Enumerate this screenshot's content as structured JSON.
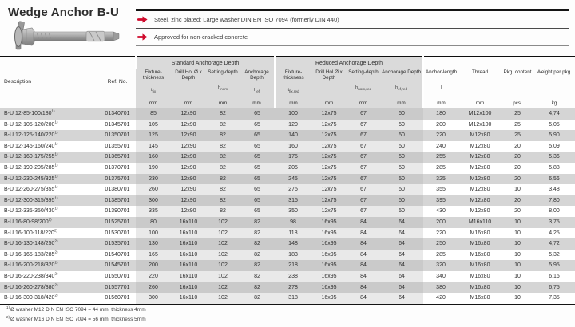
{
  "page": {
    "title": "Wedge Anchor B-U"
  },
  "colors": {
    "accent_red": "#cf0a2c",
    "header_gray": "#dadada",
    "row_shade_gray": "#d5d5d5",
    "group_tint": "#e9e9e9",
    "rule_black": "#141414"
  },
  "icons": {
    "bullet_arrow": "red-arrow-right",
    "product_image": "wedge-anchor-illustration"
  },
  "bullets": [
    {
      "text": "Steel, zinc plated; Large washer DIN EN ISO 7094 (formerly DIN 440)"
    },
    {
      "text": "Approved for non-cracked concrete"
    }
  ],
  "table": {
    "groups": {
      "standard": "Standard Anchorage Depth",
      "reduced": "Reduced Anchorage Depth"
    },
    "columns": [
      {
        "label": "Description"
      },
      {
        "label": "Ref. No."
      },
      {
        "label": "Fixture-thickness",
        "sym_base": "t",
        "sym_sub": "fix",
        "unit": "mm"
      },
      {
        "label": "Drill Hol Ø x Depth",
        "unit": "mm"
      },
      {
        "label": "Setting-depth",
        "sym_base": "h",
        "sym_sub": "nom",
        "unit": "mm"
      },
      {
        "label": "Anchorage Depth",
        "sym_base": "h",
        "sym_sub": "ef",
        "unit": "mm"
      },
      {
        "label": "Fixture-thickness",
        "sym_base": "t",
        "sym_sub": "fix,red",
        "unit": "mm"
      },
      {
        "label": "Drill Hol Ø x Depth",
        "unit": "mm"
      },
      {
        "label": "Setting-depth",
        "sym_base": "h",
        "sym_sub": "nom,red",
        "unit": "mm"
      },
      {
        "label": "Anchorage Depth",
        "sym_base": "h",
        "sym_sub": "ef,red",
        "unit": "mm"
      },
      {
        "label": "Anchor-length",
        "sym_base": "l",
        "unit": "mm"
      },
      {
        "label": "Thread",
        "unit": "mm"
      },
      {
        "label": "Pkg. content",
        "unit": "pcs."
      },
      {
        "label": "Weight per pkg.",
        "unit": "kg"
      }
    ],
    "rows": [
      {
        "desc": "B-U 12-85-100/180",
        "sup": "1)",
        "ref": "01340701",
        "std": [
          "85",
          "12x90",
          "82",
          "65"
        ],
        "red": [
          "100",
          "12x75",
          "67",
          "50"
        ],
        "len": "180",
        "thread": "M12x100",
        "pkg": "25",
        "weight": "4,74"
      },
      {
        "desc": "B-U 12-105-120/200",
        "sup": "1)",
        "ref": "01345701",
        "std": [
          "105",
          "12x90",
          "82",
          "65"
        ],
        "red": [
          "120",
          "12x75",
          "67",
          "50"
        ],
        "len": "200",
        "thread": "M12x100",
        "pkg": "25",
        "weight": "5,05"
      },
      {
        "desc": "B-U 12-125-140/220",
        "sup": "1)",
        "ref": "01350701",
        "std": [
          "125",
          "12x90",
          "82",
          "65"
        ],
        "red": [
          "140",
          "12x75",
          "67",
          "50"
        ],
        "len": "220",
        "thread": "M12x80",
        "pkg": "25",
        "weight": "5,90"
      },
      {
        "desc": "B-U 12-145-160/240",
        "sup": "1)",
        "ref": "01355701",
        "std": [
          "145",
          "12x90",
          "82",
          "65"
        ],
        "red": [
          "160",
          "12x75",
          "67",
          "50"
        ],
        "len": "240",
        "thread": "M12x80",
        "pkg": "20",
        "weight": "5,09"
      },
      {
        "desc": "B-U 12-160-175/255",
        "sup": "1)",
        "ref": "01365701",
        "std": [
          "160",
          "12x90",
          "82",
          "65"
        ],
        "red": [
          "175",
          "12x75",
          "67",
          "50"
        ],
        "len": "255",
        "thread": "M12x80",
        "pkg": "20",
        "weight": "5,36"
      },
      {
        "desc": "B-U 12-190-205/285",
        "sup": "1)",
        "ref": "01370701",
        "std": [
          "190",
          "12x90",
          "82",
          "65"
        ],
        "red": [
          "205",
          "12x75",
          "67",
          "50"
        ],
        "len": "285",
        "thread": "M12x80",
        "pkg": "20",
        "weight": "5,88"
      },
      {
        "desc": "B-U 12-230-245/325",
        "sup": "1)",
        "ref": "01375701",
        "std": [
          "230",
          "12x90",
          "82",
          "65"
        ],
        "red": [
          "245",
          "12x75",
          "67",
          "50"
        ],
        "len": "325",
        "thread": "M12x80",
        "pkg": "20",
        "weight": "6,56"
      },
      {
        "desc": "B-U 12-260-275/355",
        "sup": "1)",
        "ref": "01380701",
        "std": [
          "260",
          "12x90",
          "82",
          "65"
        ],
        "red": [
          "275",
          "12x75",
          "67",
          "50"
        ],
        "len": "355",
        "thread": "M12x80",
        "pkg": "10",
        "weight": "3,48"
      },
      {
        "desc": "B-U 12-300-315/395",
        "sup": "1)",
        "ref": "01385701",
        "std": [
          "300",
          "12x90",
          "82",
          "65"
        ],
        "red": [
          "315",
          "12x75",
          "67",
          "50"
        ],
        "len": "395",
        "thread": "M12x80",
        "pkg": "20",
        "weight": "7,80"
      },
      {
        "desc": "B-U 12-335-350/430",
        "sup": "1)",
        "ref": "01390701",
        "std": [
          "335",
          "12x90",
          "82",
          "65"
        ],
        "red": [
          "350",
          "12x75",
          "67",
          "50"
        ],
        "len": "430",
        "thread": "M12x80",
        "pkg": "20",
        "weight": "8,00"
      },
      {
        "desc": "B-U 16-80-98/200",
        "sup": "2)",
        "ref": "01525701",
        "std": [
          "80",
          "16x110",
          "102",
          "82"
        ],
        "red": [
          "98",
          "16x95",
          "84",
          "64"
        ],
        "len": "200",
        "thread": "M16x110",
        "pkg": "10",
        "weight": "3,75"
      },
      {
        "desc": "B-U 16-100-118/220",
        "sup": "2)",
        "ref": "01530701",
        "std": [
          "100",
          "16x110",
          "102",
          "82"
        ],
        "red": [
          "118",
          "16x95",
          "84",
          "64"
        ],
        "len": "220",
        "thread": "M16x80",
        "pkg": "10",
        "weight": "4,25"
      },
      {
        "desc": "B-U 16-130-148/250",
        "sup": "2)",
        "ref": "01535701",
        "std": [
          "130",
          "16x110",
          "102",
          "82"
        ],
        "red": [
          "148",
          "16x95",
          "84",
          "64"
        ],
        "len": "250",
        "thread": "M16x80",
        "pkg": "10",
        "weight": "4,72"
      },
      {
        "desc": "B-U 16-165-183/285",
        "sup": "2)",
        "ref": "01540701",
        "std": [
          "165",
          "16x110",
          "102",
          "82"
        ],
        "red": [
          "183",
          "16x95",
          "84",
          "64"
        ],
        "len": "285",
        "thread": "M16x80",
        "pkg": "10",
        "weight": "5,32"
      },
      {
        "desc": "B-U 16-200-218/320",
        "sup": "2)",
        "ref": "01545701",
        "std": [
          "200",
          "16x110",
          "102",
          "82"
        ],
        "red": [
          "218",
          "16x95",
          "84",
          "64"
        ],
        "len": "320",
        "thread": "M16x80",
        "pkg": "10",
        "weight": "5,95"
      },
      {
        "desc": "B-U 16-220-238/340",
        "sup": "2)",
        "ref": "01550701",
        "std": [
          "220",
          "16x110",
          "102",
          "82"
        ],
        "red": [
          "238",
          "16x95",
          "84",
          "64"
        ],
        "len": "340",
        "thread": "M16x80",
        "pkg": "10",
        "weight": "6,16"
      },
      {
        "desc": "B-U 16-260-278/380",
        "sup": "2)",
        "ref": "01557701",
        "std": [
          "260",
          "16x110",
          "102",
          "82"
        ],
        "red": [
          "278",
          "16x95",
          "84",
          "64"
        ],
        "len": "380",
        "thread": "M16x80",
        "pkg": "10",
        "weight": "6,75"
      },
      {
        "desc": "B-U 16-300-318/420",
        "sup": "2)",
        "ref": "01560701",
        "std": [
          "300",
          "16x110",
          "102",
          "82"
        ],
        "red": [
          "318",
          "16x95",
          "84",
          "64"
        ],
        "len": "420",
        "thread": "M16x80",
        "pkg": "10",
        "weight": "7,35"
      }
    ]
  },
  "footnotes": [
    {
      "marker": "1)",
      "text": "Ø washer M12 DIN EN ISO 7094 = 44 mm, thickness 4mm"
    },
    {
      "marker": "2)",
      "text": "Ø washer M16 DIN EN ISO 7094 = 56 mm, thickness 5mm"
    }
  ]
}
